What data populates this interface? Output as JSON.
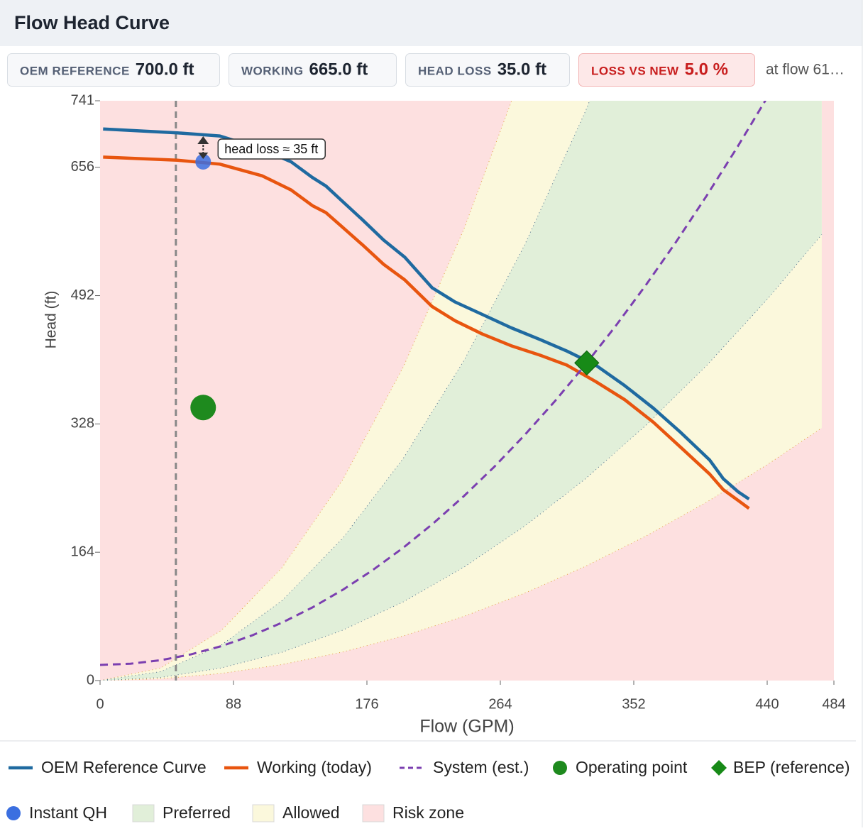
{
  "header": {
    "title": "Flow Head Curve"
  },
  "badges": [
    {
      "label": "OEM REFERENCE",
      "value": "700.0 ft"
    },
    {
      "label": "WORKING",
      "value": "665.0 ft"
    },
    {
      "label": "HEAD LOSS",
      "value": "35.0 ft"
    },
    {
      "label": "LOSS VS NEW",
      "value": "5.0 %",
      "alert": true
    }
  ],
  "note": "at flow 61…",
  "chart_data": {
    "type": "line",
    "xlabel": "Flow (GPM)",
    "ylabel": "Head (ft)",
    "xlim": [
      0,
      484
    ],
    "ylim": [
      0,
      741
    ],
    "xticks": [
      0,
      88,
      176,
      264,
      352,
      440,
      484
    ],
    "yticks": [
      0,
      164,
      328,
      492,
      656,
      741
    ],
    "series": [
      {
        "name": "OEM Reference Curve",
        "color": "#1f6aa0",
        "style": "solid",
        "x": [
          2,
          51,
          79,
          107,
          126,
          140,
          149,
          159,
          173,
          187,
          201,
          219,
          234,
          252,
          271,
          290,
          308,
          327,
          346,
          365,
          383,
          402,
          411,
          421,
          428
        ],
        "values": [
          705,
          700,
          696,
          679,
          663,
          643,
          632,
          614,
          589,
          563,
          541,
          502,
          484,
          468,
          451,
          436,
          421,
          403,
          377,
          348,
          317,
          282,
          258,
          241,
          232
        ]
      },
      {
        "name": "Working (today)",
        "color": "#e8550f",
        "style": "solid",
        "x": [
          2,
          51,
          79,
          107,
          126,
          140,
          149,
          159,
          173,
          187,
          201,
          219,
          234,
          252,
          271,
          290,
          308,
          327,
          346,
          365,
          383,
          402,
          411,
          421,
          428
        ],
        "values": [
          669,
          665,
          660,
          645,
          627,
          607,
          598,
          581,
          557,
          532,
          512,
          478,
          460,
          443,
          428,
          416,
          403,
          382,
          359,
          330,
          298,
          264,
          244,
          230,
          220
        ]
      },
      {
        "name": "System (est.)",
        "color": "#7b3fb0",
        "style": "dashed",
        "x": [
          0,
          20,
          40,
          60,
          80,
          100,
          120,
          140,
          160,
          180,
          200,
          220,
          240,
          260,
          280,
          300,
          320,
          340,
          360,
          380,
          400,
          420,
          440
        ],
        "values": [
          20,
          21.5,
          26,
          33.5,
          44,
          57.5,
          74,
          93.4,
          115.9,
          141.4,
          169.8,
          201.3,
          235.8,
          273.2,
          313.7,
          357.1,
          403.6,
          453,
          505.5,
          560.9,
          619.4,
          680.8,
          745.2
        ]
      },
      {
        "name": "Operating point",
        "color": "#1e8a1e",
        "style": "point",
        "x": [
          68
        ],
        "values": [
          349
        ]
      },
      {
        "name": "BEP (reference)",
        "color": "#178a17",
        "style": "diamond",
        "x": [
          321
        ],
        "values": [
          406
        ]
      },
      {
        "name": "Instant QH",
        "color": "#3b6fe0",
        "style": "point-small",
        "x": [
          68
        ],
        "values": [
          663
        ]
      }
    ],
    "band_x": [
      0,
      40,
      80,
      120,
      160,
      200,
      240,
      280,
      320,
      360,
      400,
      440,
      476
    ],
    "zones": [
      {
        "name": "Preferred",
        "color": "#e1efd9",
        "line": "#4a6a8a",
        "lower": [
          0,
          4,
          16.1,
          36.2,
          64.4,
          100.6,
          144.9,
          197.3,
          257.6,
          326.1,
          402.6,
          487.1,
          570.1
        ],
        "upper": [
          0,
          11.4,
          45.4,
          102.2,
          181.8,
          284,
          409,
          556.6,
          727,
          920,
          1136,
          1374.6,
          1608.7
        ]
      },
      {
        "name": "Allowed",
        "color": "#fbf8dc",
        "line": "#e0a040",
        "lower": [
          0,
          2.3,
          9.1,
          20.5,
          36.5,
          57,
          82.1,
          111.7,
          145.9,
          184.7,
          228,
          275.9,
          322.9
        ],
        "upper": [
          0,
          16,
          64.1,
          144.3,
          256.5,
          400.8,
          577.2,
          785.6,
          1026,
          1298.6,
          1603,
          1940,
          2270
        ]
      },
      {
        "name": "Risk zone",
        "color": "#fde0e0"
      }
    ],
    "vline_x": 50,
    "annotation": {
      "text": "head loss ≈ 35 ft"
    }
  }
}
